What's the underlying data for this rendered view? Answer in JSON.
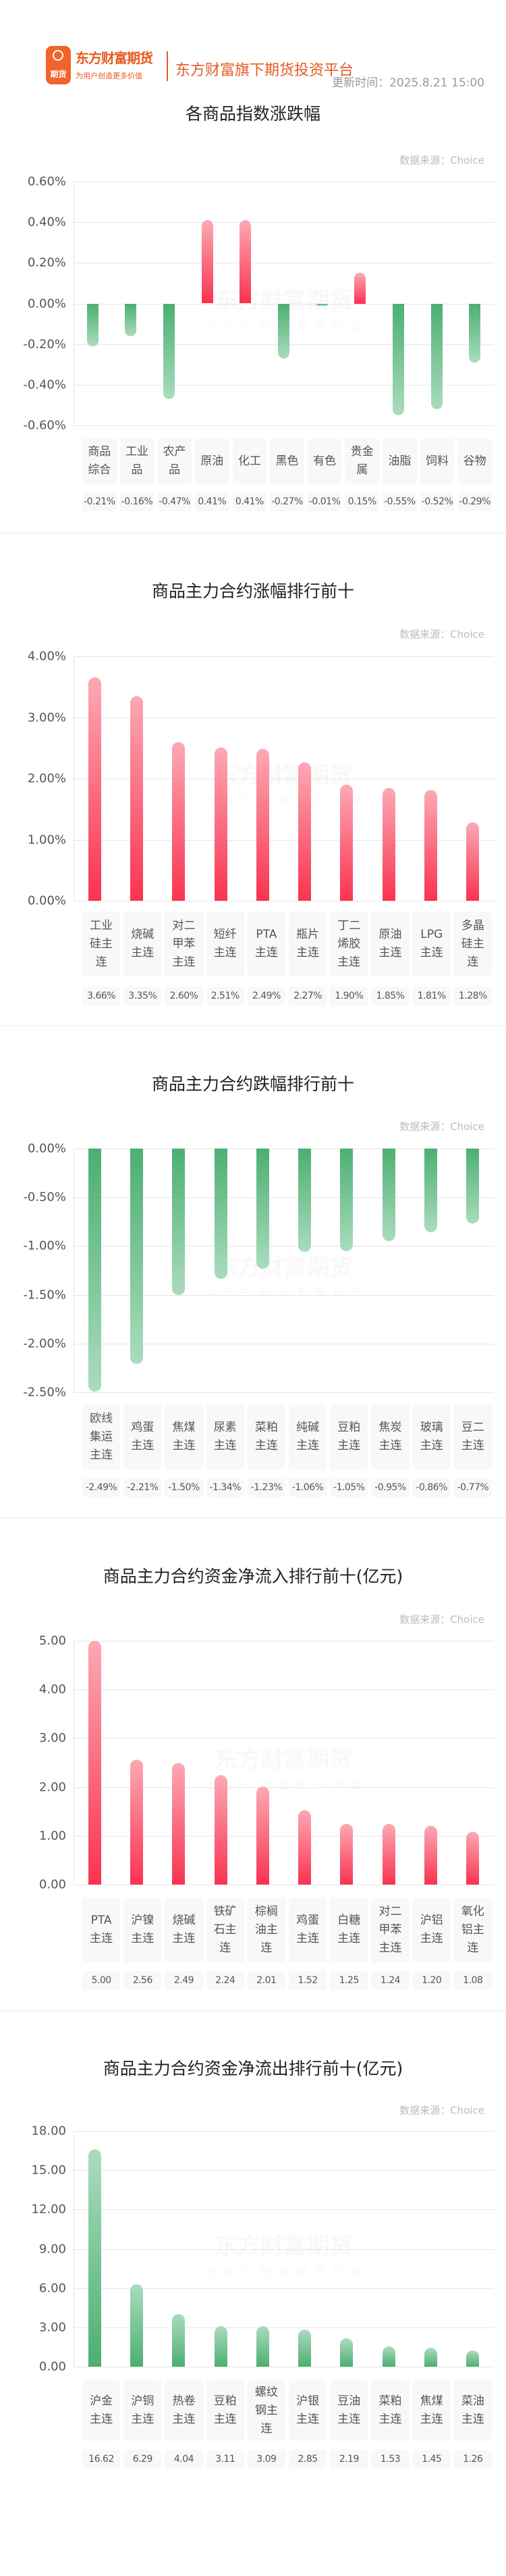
{
  "header": {
    "logo_text": "期货",
    "brand_name": "东方财富期货",
    "slogan": "为用户创造更多价值",
    "platform": "东方财富旗下期货投资平台",
    "update_time": "更新时间：2025.8.21 15:00"
  },
  "watermark": {
    "main": "东方财富期货",
    "sub": "为用户创造更多价值"
  },
  "colors": {
    "up_dark": "#fa3350",
    "up_light": "#fca9b4",
    "down_dark": "#4caf72",
    "down_light": "#aadcbd"
  },
  "chart_data": [
    {
      "type": "bar",
      "title": "各商品指数涨跌幅",
      "source": "数据来源：Choice",
      "ylim": [
        -0.6,
        0.6
      ],
      "yticks": [
        0.6,
        0.4,
        0.2,
        0,
        -0.2,
        -0.4,
        -0.6
      ],
      "ytick_labels": [
        "0.60%",
        "0.40%",
        "0.20%",
        "0.00%",
        "-0.20%",
        "-0.40%",
        "-0.60%"
      ],
      "grid": true,
      "categories": [
        "商品综合",
        "工业品",
        "农产品",
        "原油",
        "化工",
        "黑色",
        "有色",
        "贵金属",
        "油脂",
        "饲料",
        "谷物"
      ],
      "values": [
        -0.21,
        -0.16,
        -0.47,
        0.41,
        0.41,
        -0.27,
        -0.01,
        0.15,
        -0.55,
        -0.52,
        -0.29
      ],
      "value_labels": [
        "-0.21%",
        "-0.16%",
        "-0.47%",
        "0.41%",
        "0.41%",
        "-0.27%",
        "-0.01%",
        "0.15%",
        "-0.55%",
        "-0.52%",
        "-0.29%"
      ],
      "color_mode": "sign"
    },
    {
      "type": "bar",
      "title": "商品主力合约涨幅排行前十",
      "source": "数据来源：Choice",
      "ylim": [
        0,
        4
      ],
      "yticks": [
        4,
        3,
        2,
        1,
        0
      ],
      "ytick_labels": [
        "4.00%",
        "3.00%",
        "2.00%",
        "1.00%",
        "0.00%"
      ],
      "grid": true,
      "categories": [
        "工业硅主连",
        "烧碱主连",
        "对二甲苯主连",
        "短纤主连",
        "PTA主连",
        "瓶片主连",
        "丁二烯胶主连",
        "原油主连",
        "LPG主连",
        "多晶硅主连"
      ],
      "values": [
        3.66,
        3.35,
        2.6,
        2.51,
        2.49,
        2.27,
        1.9,
        1.85,
        1.81,
        1.28
      ],
      "value_labels": [
        "3.66%",
        "3.35%",
        "2.60%",
        "2.51%",
        "2.49%",
        "2.27%",
        "1.90%",
        "1.85%",
        "1.81%",
        "1.28%"
      ],
      "color_mode": "up"
    },
    {
      "type": "bar",
      "title": "商品主力合约跌幅排行前十",
      "source": "数据来源：Choice",
      "ylim": [
        -2.5,
        0
      ],
      "yticks": [
        0,
        -0.5,
        -1,
        -1.5,
        -2,
        -2.5
      ],
      "ytick_labels": [
        "0.00%",
        "-0.50%",
        "-1.00%",
        "-1.50%",
        "-2.00%",
        "-2.50%"
      ],
      "grid": true,
      "categories": [
        "欧线集运主连",
        "鸡蛋主连",
        "焦煤主连",
        "尿素主连",
        "菜粕主连",
        "纯碱主连",
        "豆粕主连",
        "焦炭主连",
        "玻璃主连",
        "豆二主连"
      ],
      "values": [
        -2.49,
        -2.21,
        -1.5,
        -1.34,
        -1.23,
        -1.06,
        -1.05,
        -0.95,
        -0.86,
        -0.77
      ],
      "value_labels": [
        "-2.49%",
        "-2.21%",
        "-1.50%",
        "-1.34%",
        "-1.23%",
        "-1.06%",
        "-1.05%",
        "-0.95%",
        "-0.86%",
        "-0.77%"
      ],
      "color_mode": "down"
    },
    {
      "type": "bar",
      "title": "商品主力合约资金净流入排行前十(亿元)",
      "source": "数据来源：Choice",
      "ylim": [
        0,
        5
      ],
      "yticks": [
        5,
        4,
        3,
        2,
        1,
        0
      ],
      "ytick_labels": [
        "5.00",
        "4.00",
        "3.00",
        "2.00",
        "1.00",
        "0.00"
      ],
      "grid": true,
      "categories": [
        "PTA主连",
        "沪镍主连",
        "烧碱主连",
        "铁矿石主连",
        "棕榈油主连",
        "鸡蛋主连",
        "白糖主连",
        "对二甲苯主连",
        "沪铝主连",
        "氧化铝主连"
      ],
      "values": [
        5.0,
        2.56,
        2.49,
        2.24,
        2.01,
        1.52,
        1.25,
        1.24,
        1.2,
        1.08
      ],
      "value_labels": [
        "5.00",
        "2.56",
        "2.49",
        "2.24",
        "2.01",
        "1.52",
        "1.25",
        "1.24",
        "1.20",
        "1.08"
      ],
      "color_mode": "up"
    },
    {
      "type": "bar",
      "title": "商品主力合约资金净流出排行前十(亿元)",
      "source": "数据来源：Choice",
      "ylim": [
        0,
        18
      ],
      "yticks": [
        18,
        15,
        12,
        9,
        6,
        3,
        0
      ],
      "ytick_labels": [
        "18.00",
        "15.00",
        "12.00",
        "9.00",
        "6.00",
        "3.00",
        "0.00"
      ],
      "grid": true,
      "categories": [
        "沪金主连",
        "沪铜主连",
        "热卷主连",
        "豆粕主连",
        "螺纹钢主连",
        "沪银主连",
        "豆油主连",
        "菜粕主连",
        "焦煤主连",
        "菜油主连"
      ],
      "values": [
        16.62,
        6.29,
        4.04,
        3.11,
        3.09,
        2.85,
        2.19,
        1.53,
        1.45,
        1.26
      ],
      "value_labels": [
        "16.62",
        "6.29",
        "4.04",
        "3.11",
        "3.09",
        "2.85",
        "2.19",
        "1.53",
        "1.45",
        "1.26"
      ],
      "color_mode": "down"
    }
  ]
}
